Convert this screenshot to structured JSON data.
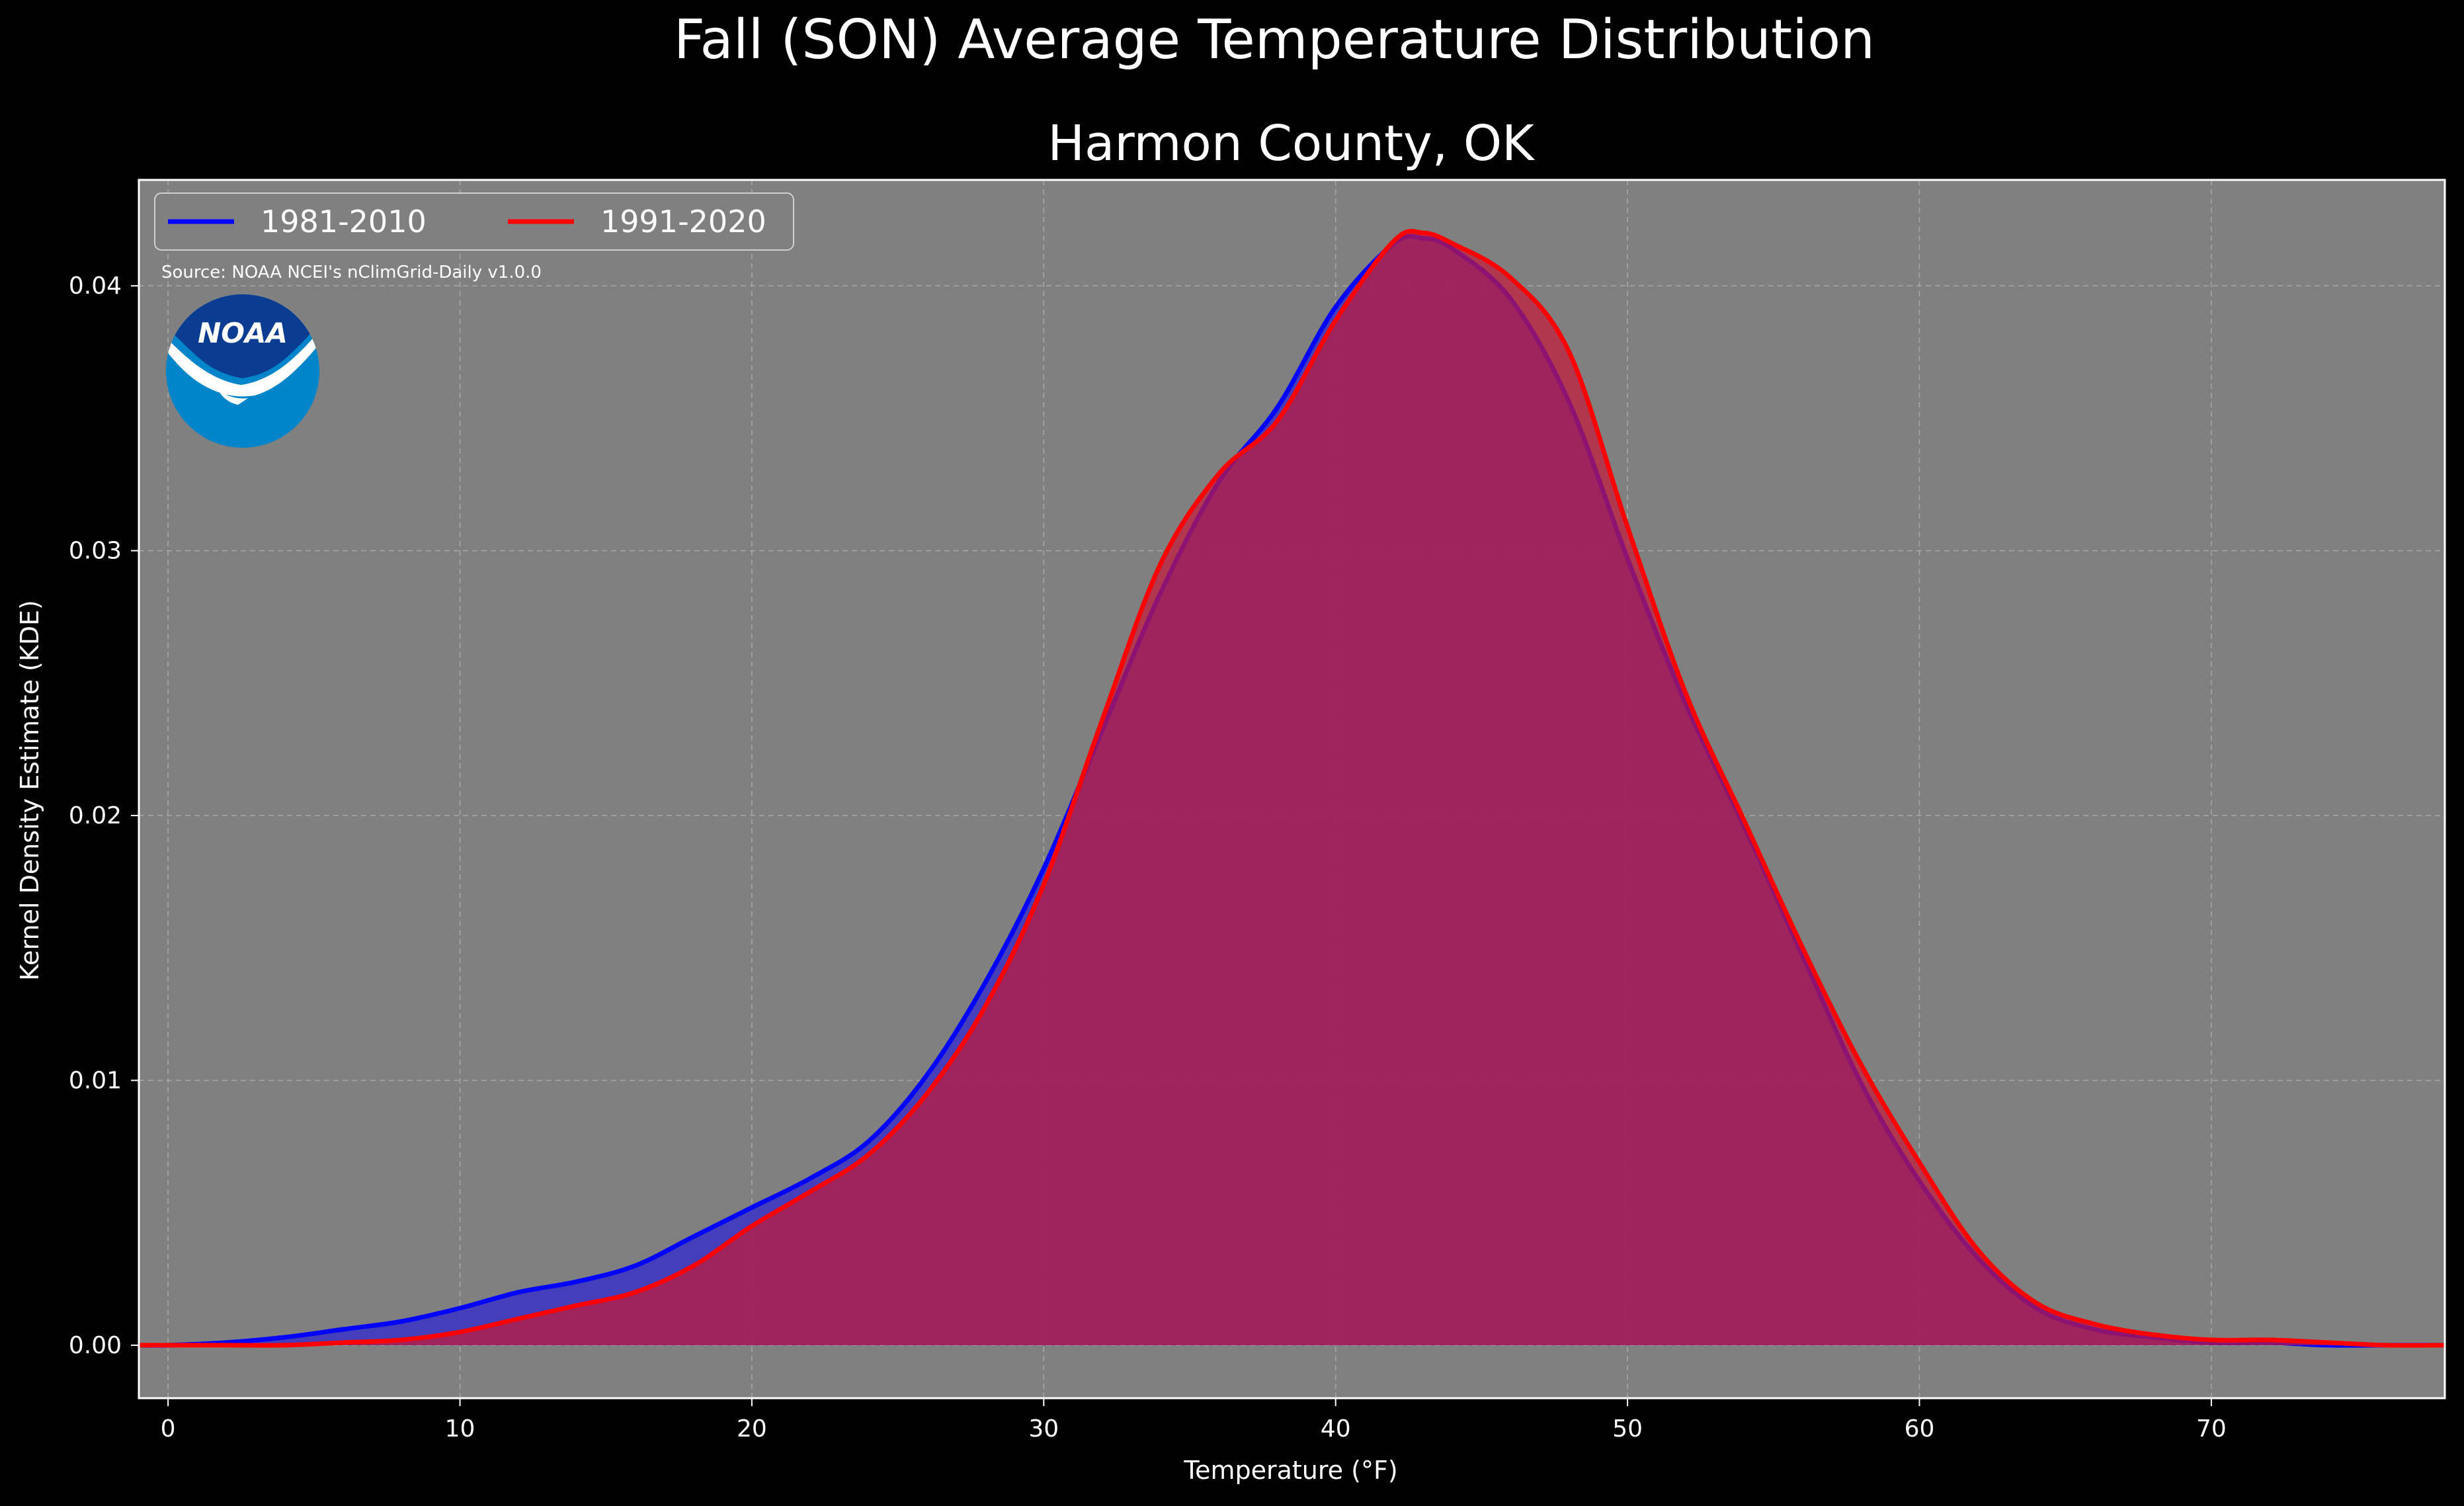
{
  "chart_data": {
    "type": "area",
    "title": "Fall (SON) Average Temperature Distribution",
    "subtitle": "Harmon County, OK",
    "xlabel": "Temperature (°F)",
    "ylabel": "Kernel Density Estimate (KDE)",
    "xlim": [
      -1,
      78
    ],
    "ylim": [
      -0.002,
      0.044
    ],
    "xticks": [
      0,
      10,
      20,
      30,
      40,
      50,
      60,
      70
    ],
    "yticks": [
      0.0,
      0.01,
      0.02,
      0.03,
      0.04
    ],
    "xtick_labels": [
      "0",
      "10",
      "20",
      "30",
      "40",
      "50",
      "60",
      "70"
    ],
    "ytick_labels": [
      "0.00",
      "0.01",
      "0.02",
      "0.03",
      "0.04"
    ],
    "grid": true,
    "legend_position": "top-left",
    "source": "Source: NOAA NCEI's nClimGrid-Daily v1.0.0",
    "series": [
      {
        "name": "1981-2010",
        "color": "#0000ff",
        "fill": "#3b32c4",
        "points": [
          [
            -1,
            0
          ],
          [
            0,
            0.0
          ],
          [
            2,
            0.0001
          ],
          [
            4,
            0.0003
          ],
          [
            6,
            0.0006
          ],
          [
            8,
            0.0009
          ],
          [
            10,
            0.0014
          ],
          [
            12,
            0.002
          ],
          [
            14,
            0.0024
          ],
          [
            16,
            0.003
          ],
          [
            18,
            0.0041
          ],
          [
            20,
            0.0052
          ],
          [
            22,
            0.0063
          ],
          [
            24,
            0.0077
          ],
          [
            26,
            0.0102
          ],
          [
            28,
            0.0137
          ],
          [
            30,
            0.018
          ],
          [
            32,
            0.0232
          ],
          [
            34,
            0.0284
          ],
          [
            36,
            0.0326
          ],
          [
            38,
            0.0354
          ],
          [
            40,
            0.0392
          ],
          [
            42,
            0.0416
          ],
          [
            43,
            0.0418
          ],
          [
            44,
            0.0414
          ],
          [
            46,
            0.0395
          ],
          [
            48,
            0.0356
          ],
          [
            50,
            0.0297
          ],
          [
            52,
            0.0242
          ],
          [
            54,
            0.0196
          ],
          [
            56,
            0.0147
          ],
          [
            58,
            0.0099
          ],
          [
            60,
            0.0062
          ],
          [
            62,
            0.0033
          ],
          [
            64,
            0.0014
          ],
          [
            66,
            0.0006
          ],
          [
            68,
            0.0003
          ],
          [
            70,
            0.0001
          ],
          [
            72,
            0.0001
          ],
          [
            74,
            0.0
          ],
          [
            76,
            0.0
          ],
          [
            78,
            0.0
          ]
        ]
      },
      {
        "name": "1991-2020",
        "color": "#ff0000",
        "fill": "#c21b3a",
        "points": [
          [
            -1,
            0
          ],
          [
            0,
            0.0
          ],
          [
            2,
            0.0
          ],
          [
            4,
            0.0
          ],
          [
            6,
            0.0001
          ],
          [
            8,
            0.0002
          ],
          [
            10,
            0.0005
          ],
          [
            12,
            0.001
          ],
          [
            14,
            0.0015
          ],
          [
            16,
            0.002
          ],
          [
            18,
            0.003
          ],
          [
            20,
            0.0045
          ],
          [
            22,
            0.0058
          ],
          [
            24,
            0.0072
          ],
          [
            26,
            0.0095
          ],
          [
            28,
            0.0128
          ],
          [
            30,
            0.0174
          ],
          [
            32,
            0.0236
          ],
          [
            34,
            0.0295
          ],
          [
            36,
            0.0329
          ],
          [
            38,
            0.0349
          ],
          [
            40,
            0.0387
          ],
          [
            42,
            0.0417
          ],
          [
            43,
            0.042
          ],
          [
            44,
            0.0416
          ],
          [
            46,
            0.0403
          ],
          [
            48,
            0.0375
          ],
          [
            50,
            0.0309
          ],
          [
            52,
            0.0246
          ],
          [
            54,
            0.0198
          ],
          [
            56,
            0.015
          ],
          [
            58,
            0.0106
          ],
          [
            60,
            0.0069
          ],
          [
            62,
            0.0036
          ],
          [
            64,
            0.0016
          ],
          [
            66,
            0.0008
          ],
          [
            68,
            0.0004
          ],
          [
            70,
            0.0002
          ],
          [
            72,
            0.0002
          ],
          [
            74,
            0.0001
          ],
          [
            76,
            0.0
          ],
          [
            78,
            0.0
          ]
        ]
      }
    ]
  },
  "logo": {
    "text": "NOAA",
    "colors": {
      "top": "#0a3d91",
      "bottom": "#0085ca",
      "bird": "#ffffff"
    }
  },
  "colors": {
    "figure_background": "#000000",
    "plot_background": "#808080",
    "grid": "#b3b3b3",
    "text": "#ffffff"
  }
}
